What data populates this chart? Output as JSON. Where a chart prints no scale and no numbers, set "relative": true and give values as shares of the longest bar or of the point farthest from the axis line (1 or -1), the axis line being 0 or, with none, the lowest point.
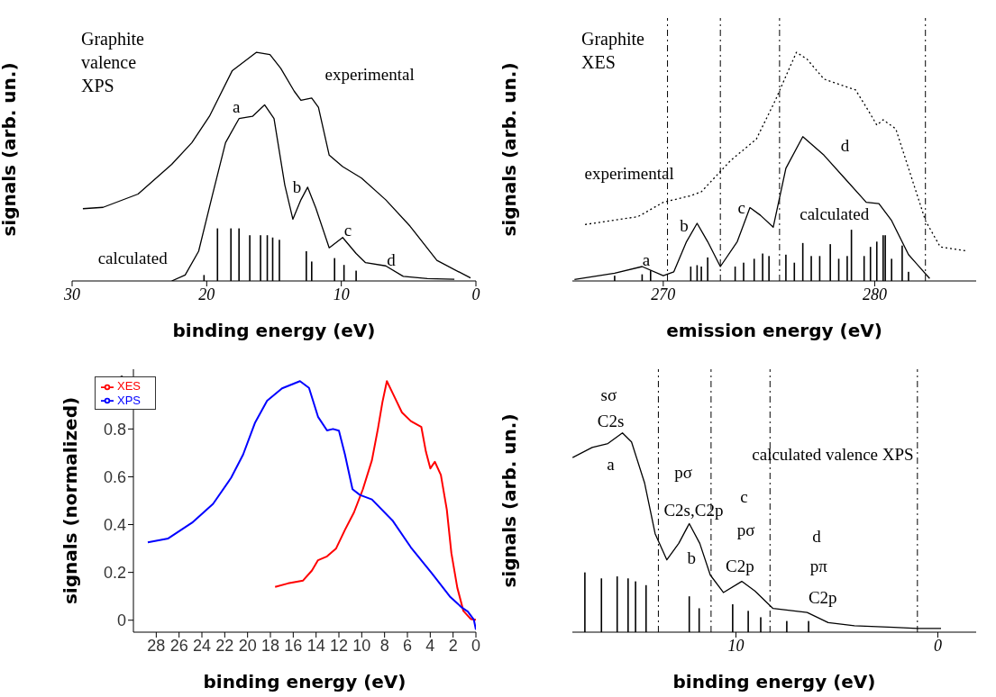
{
  "chart_data": [
    {
      "type": "line",
      "title": "Graphite valence XPS",
      "xlabel": "binding energy (eV)",
      "ylabel": "signals (arb. un.)",
      "relative": true,
      "xlim": [
        30,
        0
      ],
      "xticks": [
        30,
        20,
        10,
        0
      ],
      "series": [
        {
          "color": "#000000",
          "x": [
            29.2,
            27.7,
            25.1,
            22.6,
            21.1,
            19.8,
            18.1,
            16.3,
            15.3,
            14.5,
            13.5,
            13.0,
            12.2,
            11.7,
            10.9,
            9.9,
            8.5,
            6.7,
            4.9,
            2.9,
            0.4
          ],
          "values": [
            0.316,
            0.322,
            0.38,
            0.51,
            0.605,
            0.72,
            0.92,
            1.0,
            0.99,
            0.93,
            0.83,
            0.79,
            0.8,
            0.76,
            0.55,
            0.5,
            0.45,
            0.355,
            0.24,
            0.09,
            0.013
          ]
        },
        {
          "color": "#000000",
          "x": [
            22.6,
            21.6,
            20.6,
            19.6,
            18.6,
            17.6,
            16.6,
            15.7,
            15.0,
            14.2,
            13.6,
            13.0,
            12.5,
            11.9,
            10.9,
            9.9,
            8.9,
            8.2,
            6.7,
            5.4,
            3.6,
            1.6
          ],
          "values": [
            0,
            0.026,
            0.13,
            0.37,
            0.605,
            0.71,
            0.72,
            0.77,
            0.71,
            0.42,
            0.27,
            0.355,
            0.41,
            0.32,
            0.145,
            0.19,
            0.12,
            0.08,
            0.066,
            0.02,
            0.01,
            0.007
          ]
        },
        {
          "type": "bar",
          "color": "#000000",
          "x": [
            20.2,
            19.2,
            18.2,
            17.6,
            16.8,
            16.0,
            15.5,
            15.1,
            14.6,
            12.6,
            12.2,
            10.5,
            9.8,
            8.9
          ],
          "values": [
            0.026,
            0.23,
            0.23,
            0.23,
            0.2,
            0.2,
            0.2,
            0.19,
            0.18,
            0.13,
            0.085,
            0.1,
            0.07,
            0.045
          ]
        }
      ],
      "annotations": [
        "experimental",
        "calculated",
        "a",
        "b",
        "c",
        "d"
      ]
    },
    {
      "type": "line",
      "title": "Graphite XES",
      "xlabel": "emission energy (eV)",
      "ylabel": "signals (arb. un.)",
      "relative": true,
      "xlim": [
        265.7,
        284.8
      ],
      "xticks": [
        270,
        280
      ],
      "series": [
        {
          "color": "#000000",
          "line_style": "dotted",
          "x": [
            266.3,
            268.8,
            270.0,
            271.3,
            271.8,
            273.2,
            274.4,
            275.3,
            275.9,
            276.3,
            276.8,
            277.6,
            279.1,
            279.7,
            280.1,
            280.4,
            281.0,
            281.6,
            282.4,
            283.1,
            284.3
          ],
          "values": [
            0.247,
            0.281,
            0.344,
            0.373,
            0.39,
            0.528,
            0.62,
            0.79,
            0.917,
            1.0,
            0.97,
            0.883,
            0.835,
            0.745,
            0.682,
            0.705,
            0.665,
            0.493,
            0.264,
            0.149,
            0.132
          ]
        },
        {
          "color": "#000000",
          "x": [
            265.8,
            267.7,
            269.0,
            270.0,
            270.5,
            271.1,
            271.6,
            272.1,
            272.7,
            273.5,
            274.1,
            274.6,
            275.2,
            275.8,
            276.6,
            277.6,
            278.6,
            279.6,
            280.2,
            280.8,
            281.6,
            282.6
          ],
          "values": [
            0.006,
            0.034,
            0.063,
            0.023,
            0.04,
            0.172,
            0.252,
            0.172,
            0.063,
            0.172,
            0.321,
            0.287,
            0.235,
            0.493,
            0.631,
            0.55,
            0.447,
            0.344,
            0.338,
            0.264,
            0.115,
            0.011
          ]
        },
        {
          "type": "bar",
          "color": "#000000",
          "x": [
            267.7,
            269.0,
            269.4,
            271.3,
            271.6,
            271.8,
            272.1,
            273.4,
            273.8,
            274.3,
            274.7,
            275.0,
            275.8,
            276.2,
            276.6,
            277.0,
            277.4,
            277.9,
            278.3,
            278.7,
            278.9,
            279.5,
            279.8,
            280.1,
            280.4,
            280.5,
            280.8,
            281.3,
            281.6
          ],
          "values": [
            0.023,
            0.029,
            0.046,
            0.063,
            0.069,
            0.063,
            0.103,
            0.063,
            0.08,
            0.097,
            0.12,
            0.109,
            0.115,
            0.08,
            0.166,
            0.109,
            0.109,
            0.161,
            0.097,
            0.109,
            0.224,
            0.109,
            0.149,
            0.172,
            0.2,
            0.2,
            0.097,
            0.155,
            0.04
          ]
        }
      ],
      "ref_lines": [
        {
          "axis": "x",
          "value": 270.2,
          "line_style": "dashed"
        },
        {
          "axis": "x",
          "value": 272.7,
          "line_style": "dashed"
        },
        {
          "axis": "x",
          "value": 275.5,
          "line_style": "dashed"
        },
        {
          "axis": "x",
          "value": 282.4,
          "line_style": "dashed"
        }
      ],
      "annotations": [
        "experimental",
        "calculated",
        "a",
        "b",
        "c",
        "d"
      ]
    },
    {
      "type": "line",
      "xlabel": "binding energy (eV)",
      "ylabel": "signals (normalized)",
      "xlim": [
        30,
        0
      ],
      "xticks": [
        28,
        26,
        24,
        22,
        20,
        18,
        16,
        14,
        12,
        10,
        8,
        6,
        4,
        2,
        0
      ],
      "ylim": [
        -0.05,
        1.05
      ],
      "yticks": [
        0,
        0.2,
        0.4,
        0.6,
        0.8,
        1
      ],
      "legend": "top left",
      "series": [
        {
          "name": "XES",
          "color": "#ff0000",
          "x": [
            17.59,
            16.46,
            15.14,
            14.36,
            13.83,
            13.04,
            12.26,
            11.47,
            10.68,
            9.9,
            9.11,
            8.58,
            8.19,
            7.8,
            7.27,
            6.48,
            5.7,
            4.78,
            4.38,
            3.99,
            3.6,
            3.07,
            2.55,
            2.15,
            1.63,
            1.1,
            0.45,
            0
          ],
          "values": [
            0.139,
            0.154,
            0.166,
            0.208,
            0.251,
            0.267,
            0.299,
            0.378,
            0.451,
            0.548,
            0.669,
            0.802,
            0.912,
            1.0,
            0.948,
            0.869,
            0.833,
            0.808,
            0.705,
            0.635,
            0.663,
            0.608,
            0.463,
            0.281,
            0.136,
            0.039,
            0.005,
            0.002
          ]
        },
        {
          "name": "XPS",
          "color": "#0000ff",
          "x": [
            28.74,
            26.95,
            24.86,
            23.02,
            21.44,
            20.39,
            19.34,
            18.29,
            16.98,
            15.41,
            14.62,
            13.83,
            13.04,
            12.52,
            12.0,
            11.47,
            10.81,
            10.16,
            9.11,
            7.27,
            5.7,
            3.86,
            2.28,
            1.23,
            0.71,
            0.18,
            0
          ],
          "values": [
            0.326,
            0.342,
            0.408,
            0.487,
            0.596,
            0.693,
            0.827,
            0.918,
            0.97,
            1.0,
            0.972,
            0.851,
            0.794,
            0.8,
            0.793,
            0.693,
            0.548,
            0.524,
            0.505,
            0.415,
            0.305,
            0.196,
            0.099,
            0.053,
            0.036,
            0.002,
            -0.04
          ]
        }
      ]
    },
    {
      "type": "line",
      "xlabel": "binding energy (eV)",
      "ylabel": "signals (arb. un.)",
      "relative": true,
      "xlim": [
        18.1,
        -1.9
      ],
      "xticks": [
        10,
        0
      ],
      "series": [
        {
          "color": "#000000",
          "x": [
            18.09,
            17.12,
            16.34,
            15.62,
            15.17,
            14.52,
            14.0,
            13.42,
            12.83,
            12.31,
            11.79,
            11.27,
            10.62,
            9.71,
            9.06,
            8.16,
            6.47,
            5.43,
            4.13,
            2.18,
            1.01,
            -0.16
          ],
          "values": [
            0.876,
            0.927,
            0.947,
            1.0,
            0.955,
            0.748,
            0.494,
            0.363,
            0.446,
            0.545,
            0.446,
            0.287,
            0.199,
            0.255,
            0.207,
            0.119,
            0.099,
            0.048,
            0.032,
            0.024,
            0.019,
            0.019
          ]
        },
        {
          "type": "bar",
          "color": "#000000",
          "x": [
            17.48,
            16.66,
            15.88,
            15.34,
            14.97,
            14.45,
            12.31,
            11.82,
            10.16,
            9.39,
            8.77,
            7.48,
            6.4
          ],
          "values": [
            0.3,
            0.27,
            0.28,
            0.27,
            0.255,
            0.236,
            0.18,
            0.12,
            0.14,
            0.107,
            0.075,
            0.056,
            0.056
          ]
        }
      ],
      "ref_lines": [
        {
          "axis": "x",
          "value": 13.84,
          "line_style": "dashed"
        },
        {
          "axis": "x",
          "value": 11.23,
          "line_style": "dashed"
        },
        {
          "axis": "x",
          "value": 8.31,
          "line_style": "dashed"
        },
        {
          "axis": "x",
          "value": 1.01,
          "line_style": "dashed"
        }
      ],
      "annotations": [
        "calculated valence XPS",
        "sσ",
        "C2s",
        "a",
        "pσ",
        "C2s,C2p",
        "b",
        "c",
        "pσ",
        "C2p",
        "d",
        "pπ",
        "C2p"
      ]
    }
  ]
}
